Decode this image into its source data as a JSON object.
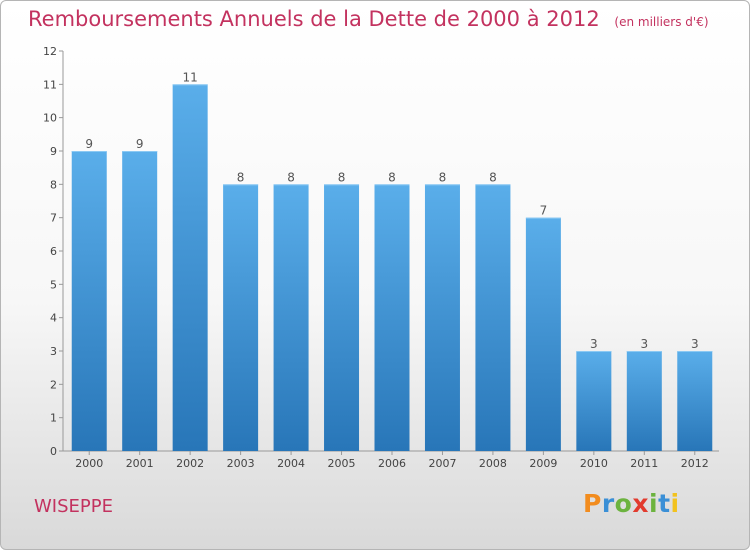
{
  "chart_data": {
    "type": "bar",
    "title": "Remboursements Annuels de la Dette de 2000 à 2012",
    "subtitle": "(en milliers d'€)",
    "categories": [
      "2000",
      "2001",
      "2002",
      "2003",
      "2004",
      "2005",
      "2006",
      "2007",
      "2008",
      "2009",
      "2010",
      "2011",
      "2012"
    ],
    "values": [
      9,
      9,
      11,
      8,
      8,
      8,
      8,
      8,
      8,
      7,
      3,
      3,
      3
    ],
    "ylim": [
      0,
      12
    ],
    "yticks": [
      0,
      1,
      2,
      3,
      4,
      5,
      6,
      7,
      8,
      9,
      10,
      11,
      12
    ],
    "grid": false,
    "bar_color_top": "#5aaeea",
    "bar_color_bottom": "#2876b8"
  },
  "place": "WISEPPE",
  "logo": {
    "letters": [
      "P",
      "r",
      "o",
      "x",
      "i",
      "t",
      "i"
    ],
    "colors": [
      "#f28c1e",
      "#3a8fd6",
      "#6cb33f",
      "#e23b2e",
      "#6cb33f",
      "#3a8fd6",
      "#f2c21e"
    ]
  }
}
